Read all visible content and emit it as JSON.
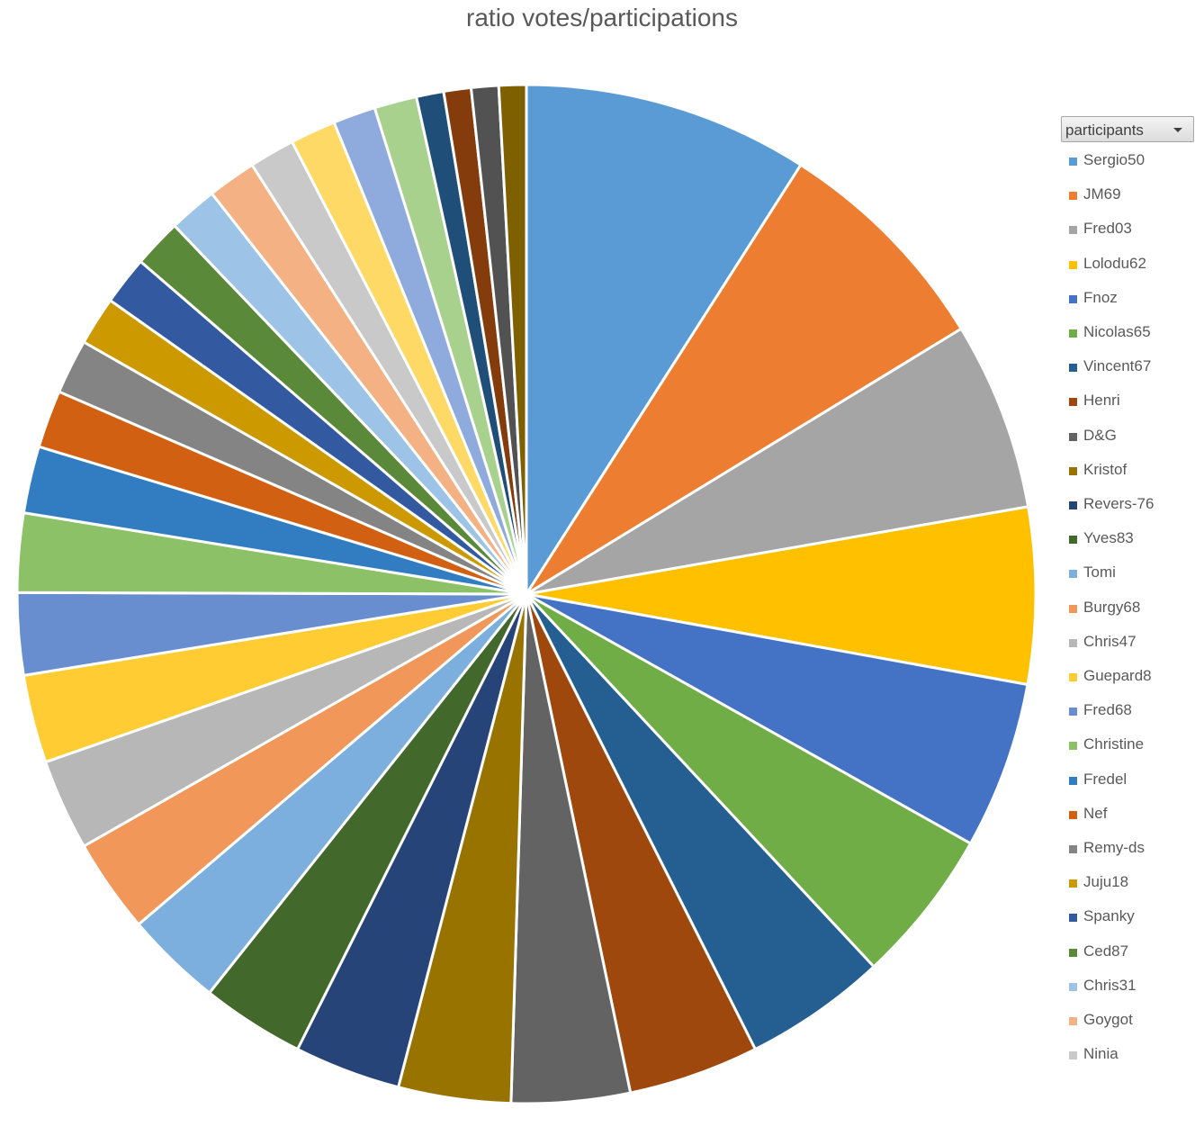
{
  "chart_data": {
    "type": "pie",
    "title": "ratio votes/participations",
    "legend_position": "right",
    "legend_filter_label": "participants",
    "slices": [
      {
        "name": "Sergio50",
        "value": 9.4,
        "color": "#5B9BD5"
      },
      {
        "name": "JM69",
        "value": 7.5,
        "color": "#ED7D31"
      },
      {
        "name": "Fred03",
        "value": 6.2,
        "color": "#A5A5A5"
      },
      {
        "name": "Lolodu62",
        "value": 5.8,
        "color": "#FFC000"
      },
      {
        "name": "Fnoz",
        "value": 5.5,
        "color": "#4472C4"
      },
      {
        "name": "Nicolas65",
        "value": 5.1,
        "color": "#70AD47"
      },
      {
        "name": "Vincent67",
        "value": 4.7,
        "color": "#255E91"
      },
      {
        "name": "Henri",
        "value": 4.3,
        "color": "#9E480E"
      },
      {
        "name": "D&G",
        "value": 3.9,
        "color": "#636363"
      },
      {
        "name": "Kristof",
        "value": 3.7,
        "color": "#997300"
      },
      {
        "name": "Revers-76",
        "value": 3.5,
        "color": "#264478"
      },
      {
        "name": "Yves83",
        "value": 3.4,
        "color": "#43682B"
      },
      {
        "name": "Tomi",
        "value": 3.2,
        "color": "#7CAFDD"
      },
      {
        "name": "Burgy68",
        "value": 3.1,
        "color": "#F1975A"
      },
      {
        "name": "Chris47",
        "value": 3.0,
        "color": "#B7B7B7"
      },
      {
        "name": "Guepard8",
        "value": 2.9,
        "color": "#FFCD33"
      },
      {
        "name": "Fred68",
        "value": 2.7,
        "color": "#698ED0"
      },
      {
        "name": "Christine",
        "value": 2.6,
        "color": "#8CC168"
      },
      {
        "name": "Fredel",
        "value": 2.2,
        "color": "#327DC2"
      },
      {
        "name": "Nef",
        "value": 1.9,
        "color": "#D26012"
      },
      {
        "name": "Remy-ds",
        "value": 1.8,
        "color": "#848484"
      },
      {
        "name": "Juju18",
        "value": 1.6,
        "color": "#CC9A00"
      },
      {
        "name": "Spanky",
        "value": 1.6,
        "color": "#335AA1"
      },
      {
        "name": "Ced87",
        "value": 1.6,
        "color": "#5A8A39"
      },
      {
        "name": "Chris31",
        "value": 1.6,
        "color": "#9DC3E6"
      },
      {
        "name": "Goygot",
        "value": 1.6,
        "color": "#F4B183"
      },
      {
        "name": "Ninia",
        "value": 1.5,
        "color": "#C9C9C9"
      },
      {
        "name": "",
        "value": 1.5,
        "color": "#FFD966"
      },
      {
        "name": "",
        "value": 1.4,
        "color": "#8FAADC"
      },
      {
        "name": "",
        "value": 1.4,
        "color": "#A9D18E"
      },
      {
        "name": "",
        "value": 0.9,
        "color": "#1F4E79"
      },
      {
        "name": "",
        "value": 0.9,
        "color": "#843C0C"
      },
      {
        "name": "",
        "value": 0.9,
        "color": "#525252"
      },
      {
        "name": "",
        "value": 0.9,
        "color": "#7F6000"
      }
    ]
  }
}
